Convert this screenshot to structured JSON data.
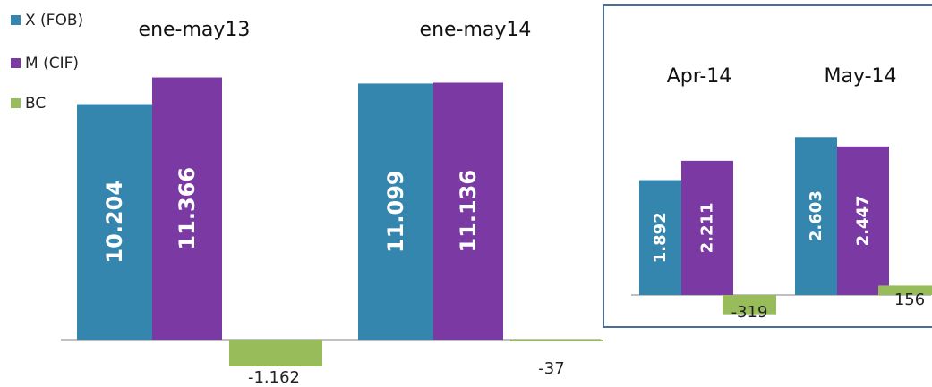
{
  "chart_data": [
    {
      "type": "bar",
      "categories": [
        "ene-may13",
        "ene-may14"
      ],
      "series": [
        {
          "name": "X (FOB)",
          "values": [
            10204,
            11099
          ],
          "labels": [
            "10.204",
            "11.099"
          ]
        },
        {
          "name": "M (CIF)",
          "values": [
            11366,
            11136
          ],
          "labels": [
            "11.366",
            "11.136"
          ]
        },
        {
          "name": "BC",
          "values": [
            -1162,
            -37
          ],
          "labels": [
            "-1.162",
            "-37"
          ]
        }
      ],
      "ylim": [
        -1200,
        12000
      ],
      "grid": false,
      "legend": "top-left"
    },
    {
      "type": "bar",
      "categories": [
        "Apr-14",
        "May-14"
      ],
      "series": [
        {
          "name": "X (FOB)",
          "values": [
            1892,
            2603
          ],
          "labels": [
            "1.892",
            "2.603"
          ]
        },
        {
          "name": "M (CIF)",
          "values": [
            2211,
            2447
          ],
          "labels": [
            "2.211",
            "2.447"
          ]
        },
        {
          "name": "BC",
          "values": [
            -319,
            156
          ],
          "labels": [
            "-319",
            "156"
          ]
        }
      ],
      "ylim": [
        -319,
        3500
      ],
      "grid": false,
      "legend": "none"
    }
  ],
  "colors": {
    "x_fob": "#3586AF",
    "m_cif": "#7B3AA3",
    "bc": "#97BC59",
    "axis": "#808080",
    "frame": "#4A6E99"
  }
}
